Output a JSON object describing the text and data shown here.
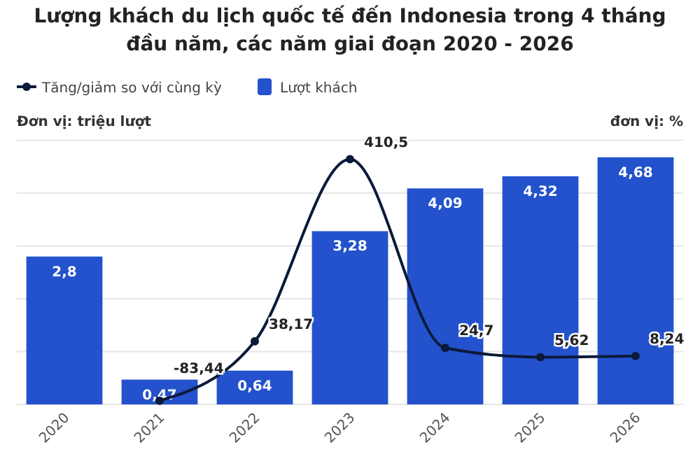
{
  "chart_data": {
    "type": "bar",
    "title": "Lượng khách du lịch quốc tế đến Indonesia trong 4 tháng đầu năm, các năm giai đoạn 2020 - 2026",
    "ylabel": "Đơn vị: triệu lượt",
    "y2label": "đơn vị: %",
    "categories": [
      "2020",
      "2021",
      "2022",
      "2023",
      "2024",
      "2025",
      "2026"
    ],
    "series": [
      {
        "name": "Tăng/giảm so với cùng kỳ",
        "type": "line",
        "axis": "y2",
        "color": "#0b1a3a",
        "values": [
          null,
          -83.44,
          38.17,
          410.5,
          24.7,
          5.62,
          8.24
        ],
        "value_labels": [
          null,
          "-83,44",
          "38,17",
          "410,5",
          "24,7",
          "5,62",
          "8,24"
        ]
      },
      {
        "name": "Lượt khách",
        "color": "#2352cc",
        "values": [
          2.8,
          0.47,
          0.64,
          3.28,
          4.09,
          4.32,
          4.68
        ],
        "value_labels": [
          "2,8",
          "0,47",
          "0,64",
          "3,28",
          "4,09",
          "4,32",
          "4,68"
        ]
      }
    ],
    "tick_labels": "x",
    "grid": "y",
    "legend": "top left",
    "marker": "circle",
    "line_style": "solid"
  }
}
